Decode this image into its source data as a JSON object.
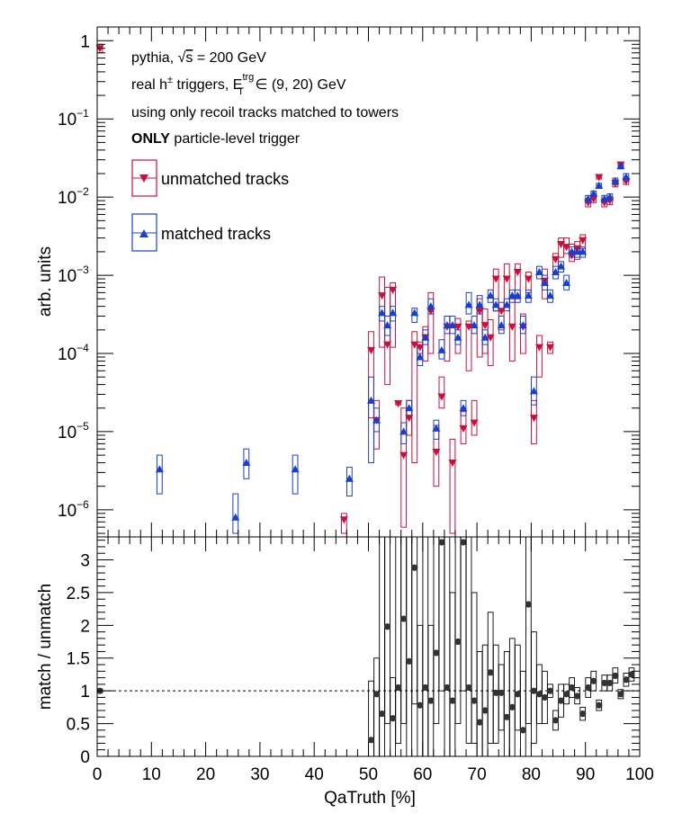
{
  "chart_data": [
    {
      "type": "scatter",
      "panel": "top",
      "ylabel": "arb. units",
      "yscale": "log",
      "ylim": [
        4.5e-07,
        1.5
      ],
      "xlim": [
        0,
        100
      ],
      "yticks": [
        {
          "label": "1",
          "sup": ""
        },
        {
          "label": "10",
          "sup": "−1"
        },
        {
          "label": "10",
          "sup": "−2"
        },
        {
          "label": "10",
          "sup": "−3"
        },
        {
          "label": "10",
          "sup": "−4"
        },
        {
          "label": "10",
          "sup": "−5"
        },
        {
          "label": "10",
          "sup": "−6"
        }
      ],
      "annotations": {
        "line1_a": "pythia, ",
        "line1_b": "√",
        "line1_c": "s",
        "line1_d": " = 200 GeV",
        "line2_a": "real h",
        "line2_sup": "±",
        "line2_b": " triggers, E",
        "line2_E_sup": "trg",
        "line2_E_sub": "T",
        "line2_c": " ∈ (9, 20) GeV",
        "line3": "using only recoil tracks matched to towers",
        "line4_bold": "ONLY",
        "line4_rest": " particle-level trigger"
      },
      "legend": [
        {
          "label": "unmatched tracks",
          "color": "#c8103c",
          "marker": "triangle-down"
        },
        {
          "label": "matched tracks",
          "color": "#1a3fc8",
          "marker": "triangle-up"
        }
      ],
      "series": [
        {
          "name": "unmatched tracks",
          "color": "#c8103c",
          "marker": "triangle-down",
          "points": [
            [
              0.5,
              0.8,
              0.7,
              0.9
            ],
            [
              45.5,
              7.5e-07,
              5e-07,
              9e-07
            ],
            [
              50.5,
              0.00011,
              1.5e-05,
              0.00019
            ],
            [
              51.5,
              1.4e-05,
              6e-06,
              2.5e-05
            ],
            [
              52.5,
              0.00055,
              0.00012,
              0.00095
            ],
            [
              53.5,
              0.00013,
              4e-05,
              0.0007
            ],
            [
              54.5,
              0.00065,
              0.00012,
              0.0008
            ],
            [
              55.5,
              2.3e-05,
              2.2e-05,
              2.4e-05
            ],
            [
              56.5,
              5e-06,
              6e-07,
              2e-05
            ],
            [
              57.5,
              1.5e-05,
              9e-06,
              2.5e-05
            ],
            [
              58.5,
              0.00013,
              4e-06,
              0.00019
            ],
            [
              59.5,
              0.00012,
              0.0001,
              0.00014
            ],
            [
              60.5,
              0.00016,
              8e-05,
              0.00022
            ],
            [
              61.5,
              0.00035,
              0.0001,
              0.0006
            ],
            [
              62.5,
              5.5e-06,
              2e-06,
              1.2e-05
            ],
            [
              63.5,
              2.8e-05,
              2e-05,
              5e-05
            ],
            [
              64.5,
              0.00022,
              8e-05,
              0.0003
            ],
            [
              65.5,
              4e-06,
              5e-07,
              8e-06
            ],
            [
              66.5,
              0.00022,
              0.0001,
              0.00028
            ],
            [
              67.5,
              1.1e-05,
              7e-06,
              1.8e-05
            ],
            [
              68.5,
              0.00022,
              6e-05,
              0.00026
            ],
            [
              69.5,
              1.3e-05,
              9e-06,
              2.5e-05
            ],
            [
              70.5,
              0.00035,
              9e-05,
              0.0005
            ],
            [
              71.5,
              0.00023,
              0.0001,
              0.00037
            ],
            [
              72.5,
              0.00016,
              7e-05,
              0.00027
            ],
            [
              73.5,
              0.0009,
              0.00035,
              0.0012
            ],
            [
              74.5,
              0.00035,
              0.0002,
              0.00045
            ],
            [
              75.5,
              0.0009,
              0.0004,
              0.0014
            ],
            [
              76.5,
              0.00022,
              8e-05,
              0.0005
            ],
            [
              77.5,
              0.0011,
              0.0005,
              0.0014
            ],
            [
              78.5,
              0.00022,
              0.0001,
              0.00032
            ],
            [
              79.5,
              0.0009,
              0.0006,
              0.0011
            ],
            [
              80.5,
              1.5e-05,
              7e-06,
              2.5e-05
            ],
            [
              81.5,
              0.00012,
              5e-05,
              0.00017
            ],
            [
              82.5,
              0.00085,
              0.0005,
              0.0012
            ],
            [
              83.5,
              0.00012,
              0.0001,
              0.00014
            ],
            [
              84.5,
              0.0016,
              0.0011,
              0.0019
            ],
            [
              85.5,
              0.0025,
              0.0017,
              0.003
            ],
            [
              86.5,
              0.0023,
              0.0019,
              0.003
            ],
            [
              87.5,
              0.0018,
              0.0015,
              0.0025
            ],
            [
              88.5,
              0.0022,
              0.0016,
              0.0027
            ],
            [
              89.5,
              0.0028,
              0.0022,
              0.0033
            ],
            [
              90.5,
              0.0085,
              0.0075,
              0.0095
            ],
            [
              91.5,
              0.0095,
              0.0085,
              0.0105
            ],
            [
              92.5,
              0.018,
              0.017,
              0.019
            ],
            [
              93.5,
              0.0085,
              0.0075,
              0.0095
            ],
            [
              94.5,
              0.009,
              0.008,
              0.01
            ],
            [
              95.5,
              0.015,
              0.0135,
              0.0165
            ],
            [
              96.5,
              0.026,
              0.024,
              0.028
            ],
            [
              97.5,
              0.016,
              0.0145,
              0.0175
            ]
          ]
        },
        {
          "name": "matched tracks",
          "color": "#1a3fc8",
          "marker": "triangle-up",
          "points": [
            [
              11.5,
              3.3e-06,
              1.6e-06,
              5e-06
            ],
            [
              25.5,
              8e-07,
              5e-07,
              1.6e-06
            ],
            [
              27.5,
              4e-06,
              2.5e-06,
              6e-06
            ],
            [
              36.5,
              3.3e-06,
              1.6e-06,
              5e-06
            ],
            [
              46.5,
              2.5e-06,
              1.5e-06,
              3.5e-06
            ],
            [
              50.5,
              2.5e-05,
              4e-06,
              5e-05
            ],
            [
              51.5,
              1.4e-05,
              1e-05,
              2e-05
            ],
            [
              52.5,
              0.00033,
              0.00026,
              0.0004
            ],
            [
              53.5,
              0.00023,
              0.00017,
              0.0003
            ],
            [
              54.5,
              0.00033,
              0.00026,
              0.0004
            ],
            [
              56.5,
              1e-05,
              7e-06,
              1.3e-05
            ],
            [
              57.5,
              2e-05,
              1.5e-05,
              2.5e-05
            ],
            [
              58.5,
              0.00033,
              0.00025,
              0.00038
            ],
            [
              59.5,
              9e-05,
              7e-05,
              0.00012
            ],
            [
              60.5,
              0.00016,
              0.00013,
              0.0002
            ],
            [
              61.5,
              0.0004,
              0.00032,
              0.0005
            ],
            [
              62.5,
              1.1e-05,
              8e-06,
              1.4e-05
            ],
            [
              63.5,
              0.00011,
              8.5e-05,
              0.00015
            ],
            [
              64.5,
              0.00023,
              0.00018,
              0.0003
            ],
            [
              65.5,
              0.00023,
              0.00018,
              0.0003
            ],
            [
              66.5,
              0.00016,
              0.00013,
              0.0002
            ],
            [
              67.5,
              2e-05,
              1.6e-05,
              2.5e-05
            ],
            [
              68.5,
              0.00042,
              0.00032,
              0.0006
            ],
            [
              69.5,
              0.00023,
              0.00018,
              0.0003
            ],
            [
              70.5,
              0.00042,
              0.00032,
              0.00055
            ],
            [
              71.5,
              0.00016,
              0.00013,
              0.0002
            ],
            [
              72.5,
              0.00055,
              0.00045,
              0.00065
            ],
            [
              73.5,
              0.00042,
              0.00035,
              0.0005
            ],
            [
              74.5,
              0.00023,
              0.00018,
              0.0003
            ],
            [
              75.5,
              0.00042,
              0.00035,
              0.0005
            ],
            [
              76.5,
              0.00055,
              0.00045,
              0.00065
            ],
            [
              77.5,
              0.00055,
              0.00045,
              0.00065
            ],
            [
              78.5,
              0.00023,
              0.00018,
              0.0003
            ],
            [
              79.5,
              0.00055,
              0.00045,
              0.00065
            ],
            [
              80.5,
              3.3e-05,
              2.2e-05,
              5e-05
            ],
            [
              81.5,
              0.0011,
              0.0009,
              0.0013
            ],
            [
              82.5,
              0.0008,
              0.00065,
              0.001
            ],
            [
              83.5,
              0.00055,
              0.00045,
              0.00065
            ],
            [
              84.5,
              0.0011,
              0.0009,
              0.0013
            ],
            [
              85.5,
              0.0013,
              0.0011,
              0.0015
            ],
            [
              86.5,
              0.0008,
              0.00065,
              0.001
            ],
            [
              87.5,
              0.002,
              0.0017,
              0.0023
            ],
            [
              88.5,
              0.002,
              0.0017,
              0.0023
            ],
            [
              89.5,
              0.002,
              0.0017,
              0.0023
            ],
            [
              90.5,
              0.0095,
              0.0085,
              0.0105
            ],
            [
              91.5,
              0.011,
              0.01,
              0.012
            ],
            [
              92.5,
              0.014,
              0.013,
              0.015
            ],
            [
              93.5,
              0.0095,
              0.0085,
              0.0105
            ],
            [
              94.5,
              0.01,
              0.009,
              0.011
            ],
            [
              95.5,
              0.016,
              0.0145,
              0.0175
            ],
            [
              96.5,
              0.025,
              0.023,
              0.027
            ],
            [
              97.5,
              0.018,
              0.016,
              0.02
            ]
          ]
        }
      ]
    },
    {
      "type": "scatter",
      "panel": "bottom",
      "xlabel": "QaTruth [%]",
      "ylabel": "match / unmatch",
      "xlim": [
        0,
        100
      ],
      "ylim": [
        0,
        3.35
      ],
      "xticks": [
        "0",
        "10",
        "20",
        "30",
        "40",
        "50",
        "60",
        "70",
        "80",
        "90",
        "100"
      ],
      "yticks": [
        "0",
        "0.5",
        "1",
        "1.5",
        "2",
        "2.5",
        "3"
      ],
      "reference_line": 1,
      "series": [
        {
          "name": "",
          "color": "#333333",
          "marker": "circle",
          "points": [
            [
              0.5,
              1.0,
              0.97,
              1.03
            ],
            [
              50.5,
              0.25,
              0.0,
              1.15
            ],
            [
              51.5,
              0.95,
              0.0,
              1.5
            ],
            [
              52.5,
              0.65,
              0.0,
              3.35
            ],
            [
              53.5,
              1.98,
              0.5,
              3.35
            ],
            [
              54.5,
              0.58,
              0.0,
              1.2
            ],
            [
              55.5,
              1.05,
              0.2,
              3.35
            ],
            [
              56.5,
              2.1,
              0.5,
              3.35
            ],
            [
              57.5,
              1.45,
              0.0,
              3.35
            ],
            [
              58.5,
              2.88,
              0.8,
              3.35
            ],
            [
              59.5,
              0.78,
              0.0,
              2.0
            ],
            [
              60.5,
              1.05,
              0.0,
              3.35
            ],
            [
              61.5,
              0.85,
              0.0,
              2.0
            ],
            [
              62.5,
              1.58,
              0.5,
              3.35
            ],
            [
              63.5,
              3.35,
              1.0,
              3.35
            ],
            [
              64.5,
              1.05,
              0.0,
              3.35
            ],
            [
              65.5,
              0.85,
              0.0,
              2.5
            ],
            [
              66.5,
              1.75,
              0.5,
              3.35
            ],
            [
              67.5,
              3.35,
              1.0,
              3.35
            ],
            [
              68.5,
              1.05,
              0.2,
              3.35
            ],
            [
              69.5,
              0.85,
              0.2,
              2.5
            ],
            [
              70.5,
              0.52,
              0.0,
              1.6
            ],
            [
              71.5,
              0.7,
              0.0,
              1.7
            ],
            [
              72.5,
              1.28,
              0.2,
              2.2
            ],
            [
              73.5,
              0.97,
              0.2,
              1.7
            ],
            [
              74.5,
              0.97,
              0.4,
              1.4
            ],
            [
              75.5,
              0.6,
              0.0,
              1.6
            ],
            [
              76.5,
              0.75,
              0.0,
              1.8
            ],
            [
              77.5,
              0.95,
              0.4,
              1.7
            ],
            [
              78.5,
              0.4,
              0.0,
              1.3
            ],
            [
              79.5,
              2.32,
              0.5,
              3.35
            ],
            [
              80.5,
              1.0,
              0.2,
              1.9
            ],
            [
              81.5,
              0.95,
              0.5,
              1.4
            ],
            [
              82.5,
              0.9,
              0.5,
              1.3
            ],
            [
              83.5,
              1.0,
              0.9,
              1.1
            ],
            [
              84.5,
              0.55,
              0.4,
              0.7
            ],
            [
              85.5,
              0.85,
              0.6,
              1.1
            ],
            [
              86.5,
              0.95,
              0.8,
              1.1
            ],
            [
              87.5,
              1.05,
              0.9,
              1.2
            ],
            [
              88.5,
              0.92,
              0.8,
              1.05
            ],
            [
              89.5,
              0.65,
              0.55,
              0.75
            ],
            [
              90.5,
              1.05,
              0.9,
              1.2
            ],
            [
              91.5,
              1.15,
              1.0,
              1.3
            ],
            [
              92.5,
              0.78,
              0.7,
              0.86
            ],
            [
              93.5,
              1.12,
              1.0,
              1.24
            ],
            [
              94.5,
              1.12,
              1.0,
              1.24
            ],
            [
              95.5,
              1.23,
              1.12,
              1.35
            ],
            [
              96.5,
              0.95,
              0.88,
              1.02
            ],
            [
              97.5,
              1.17,
              1.07,
              1.27
            ],
            [
              98.5,
              1.25,
              1.15,
              1.35
            ]
          ]
        }
      ]
    }
  ]
}
